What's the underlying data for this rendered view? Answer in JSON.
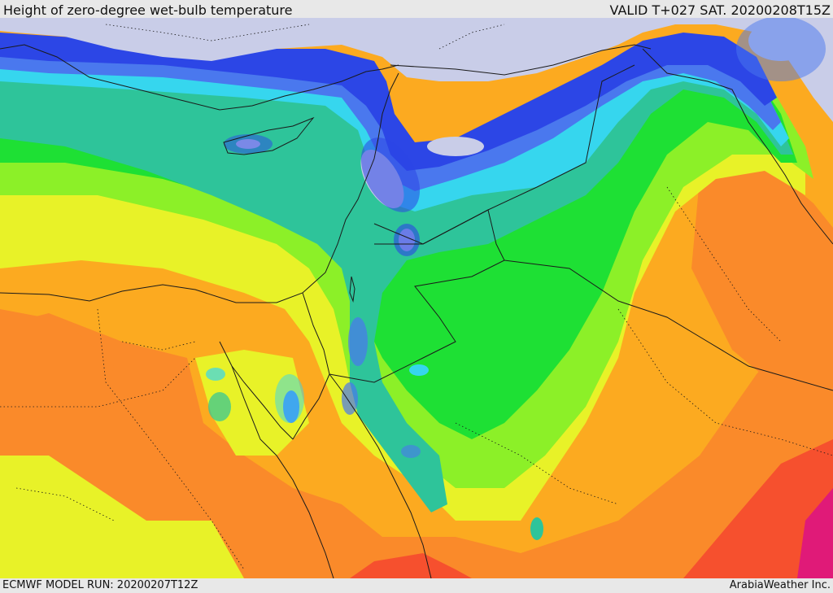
{
  "header": {
    "title": "Height of zero-degree wet-bulb temperature",
    "valid": "VALID T+027 SAT. 20200208T15Z"
  },
  "footer": {
    "model_run": "ECMWF MODEL RUN: 20200207T12Z",
    "credit": "ArabiaWeather Inc."
  },
  "colors": {
    "sea": "#c9cde8",
    "deep_blue": "#2c46e6",
    "blue": "#4a78ee",
    "cyan": "#36d6ee",
    "teal": "#2ec49a",
    "green": "#1ee034",
    "light_green": "#8cf028",
    "yellow": "#e8f228",
    "orange": "#fcaa20",
    "dark_orange": "#fa8a2a",
    "red": "#f6502e",
    "magenta": "#e01a78",
    "border": "#1a1a1a"
  }
}
